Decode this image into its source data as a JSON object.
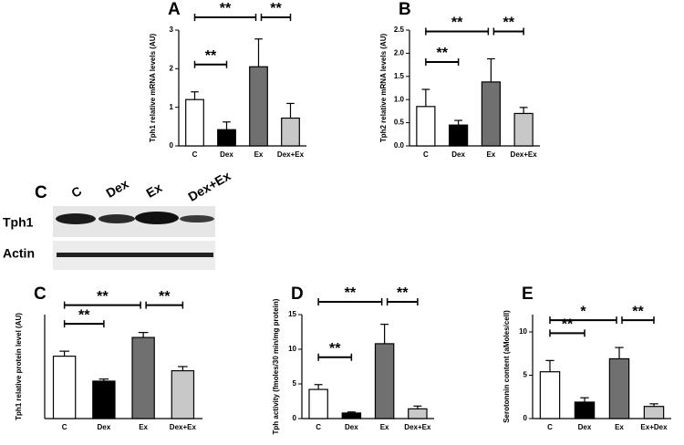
{
  "chart_data": [
    {
      "type": "bar",
      "panel": "A",
      "y_label": "Tph1 relative mRNA levels (AU)",
      "categories": [
        "C",
        "Dex",
        "Ex",
        "Dex+Ex"
      ],
      "values": [
        1.2,
        0.42,
        2.05,
        0.72
      ],
      "errors": [
        0.2,
        0.2,
        0.72,
        0.38
      ],
      "colors": [
        "#ffffff",
        "#000000",
        "#707070",
        "#c8c8c8"
      ],
      "ylim": [
        0,
        3
      ],
      "yticks": [
        0,
        1,
        2,
        3
      ],
      "annotations": [
        {
          "label": "**",
          "from": "C",
          "to": "Ex"
        },
        {
          "label": "**",
          "from": "Ex",
          "to": "Dex+Ex"
        },
        {
          "label": "**",
          "from": "C",
          "to": "Dex"
        }
      ]
    },
    {
      "type": "bar",
      "panel": "B",
      "y_label": "Tph2 relative mRNA levels (AU)",
      "categories": [
        "C",
        "Dex",
        "Ex",
        "Dex+Ex"
      ],
      "values": [
        0.85,
        0.45,
        1.38,
        0.7
      ],
      "errors": [
        0.37,
        0.1,
        0.5,
        0.13
      ],
      "colors": [
        "#ffffff",
        "#000000",
        "#707070",
        "#c8c8c8"
      ],
      "ylim": [
        0,
        2.5
      ],
      "yticks": [
        {
          "value": 0,
          "label": "0.0"
        },
        0.5,
        {
          "value": 1,
          "label": "1.0"
        },
        1.5,
        {
          "value": 2,
          "label": "2.0"
        },
        2.5
      ],
      "annotations": [
        {
          "label": "**",
          "from": "C",
          "to": "Ex"
        },
        {
          "label": "**",
          "from": "Ex",
          "to": "Dex+Ex"
        },
        {
          "label": "**",
          "from": "C",
          "to": "Dex"
        }
      ]
    },
    {
      "type": "bar",
      "panel": "C",
      "y_label": "Tph1 relative protein level (AU)",
      "categories": [
        "C",
        "Dex",
        "Ex",
        "Dex+Ex"
      ],
      "values": [
        1.5,
        0.9,
        1.95,
        1.15
      ],
      "errors": [
        0.12,
        0.05,
        0.12,
        0.1
      ],
      "colors": [
        "#ffffff",
        "#000000",
        "#707070",
        "#c8c8c8"
      ],
      "ylim": [
        0,
        2.5
      ],
      "annotations": [
        {
          "label": "**",
          "from": "C",
          "to": "Ex"
        },
        {
          "label": "**",
          "from": "Ex",
          "to": "Dex+Ex"
        },
        {
          "label": "**",
          "from": "C",
          "to": "Dex"
        }
      ]
    },
    {
      "type": "bar",
      "panel": "D",
      "y_label": "Tph activity (fmoles/30 min/mg protein)",
      "categories": [
        "C",
        "Dex",
        "Ex",
        "Dex+Ex"
      ],
      "values": [
        4.2,
        0.8,
        10.8,
        1.4
      ],
      "errors": [
        0.7,
        0.15,
        2.8,
        0.4
      ],
      "colors": [
        "#ffffff",
        "#000000",
        "#707070",
        "#c8c8c8"
      ],
      "ylim": [
        0,
        15
      ],
      "yticks": [
        0,
        5,
        10,
        15
      ],
      "annotations": [
        {
          "label": "**",
          "from": "C",
          "to": "Ex"
        },
        {
          "label": "**",
          "from": "Ex",
          "to": "Dex+Ex"
        },
        {
          "label": "**",
          "from": "C",
          "to": "Dex"
        }
      ]
    },
    {
      "type": "bar",
      "panel": "E",
      "y_label": "Serotonnin content (aMoles/cell)",
      "categories": [
        "C",
        "Dex",
        "Ex",
        "Ex+Dex"
      ],
      "values": [
        5.4,
        1.9,
        6.9,
        1.4
      ],
      "errors": [
        1.3,
        0.5,
        1.3,
        0.3
      ],
      "colors": [
        "#ffffff",
        "#000000",
        "#707070",
        "#c8c8c8"
      ],
      "ylim": [
        0,
        12
      ],
      "yticks": [
        0,
        5,
        10
      ],
      "annotations": [
        {
          "label": "*",
          "from": "C",
          "to": "Ex"
        },
        {
          "label": "**",
          "from": "Ex",
          "to": "Ex+Dex"
        },
        {
          "label": "**",
          "from": "C",
          "to": "Dex"
        }
      ]
    }
  ],
  "blot": {
    "panel": "C",
    "lanes": [
      "C",
      "Dex",
      "Ex",
      "Dex+Ex"
    ],
    "rows": [
      "Tph1",
      "Actin"
    ]
  }
}
